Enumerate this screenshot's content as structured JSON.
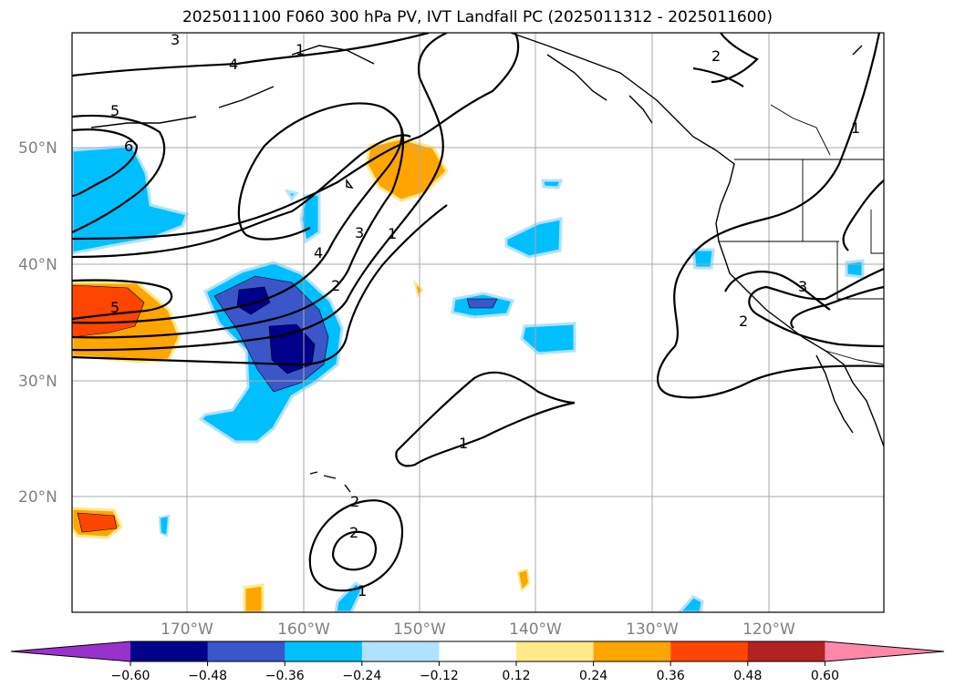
{
  "title": "2025011100 F060 300 hPa PV, IVT Landfall PC (2025011312 - 2025011600)",
  "latitude_labels": [
    "50°N",
    "40°N",
    "30°N",
    "20°N"
  ],
  "longitude_labels": [
    "170°W",
    "160°W",
    "150°W",
    "140°W",
    "130°W",
    "120°W"
  ],
  "contour_labels": [
    "3",
    "4",
    "5",
    "6",
    "4",
    "3",
    "2",
    "1",
    "5",
    "2",
    "1",
    "2",
    "1",
    "3",
    "2",
    "1",
    "2",
    "1"
  ],
  "colorbar": {
    "tick_labels": [
      "−0.60",
      "−0.48",
      "−0.36",
      "−0.24",
      "−0.12",
      "0.12",
      "0.24",
      "0.36",
      "0.48",
      "0.60"
    ],
    "colors": [
      "#9932cc",
      "#00008b",
      "#3a56c8",
      "#00bfff",
      "#b0e2ff",
      "#ffffff",
      "#ffe98a",
      "#ffa500",
      "#ff4500",
      "#b22222",
      "#ff88aa"
    ]
  }
}
